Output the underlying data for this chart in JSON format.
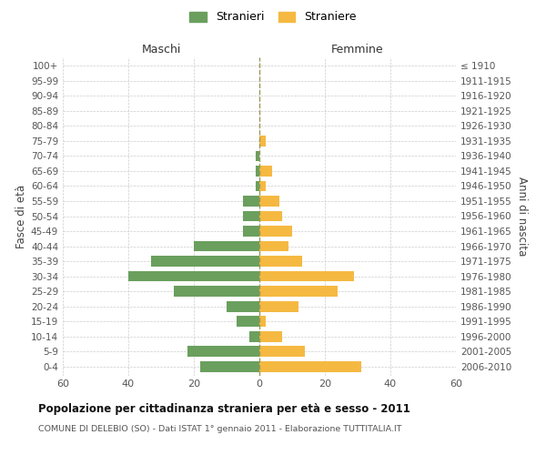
{
  "age_groups": [
    "0-4",
    "5-9",
    "10-14",
    "15-19",
    "20-24",
    "25-29",
    "30-34",
    "35-39",
    "40-44",
    "45-49",
    "50-54",
    "55-59",
    "60-64",
    "65-69",
    "70-74",
    "75-79",
    "80-84",
    "85-89",
    "90-94",
    "95-99",
    "100+"
  ],
  "birth_years": [
    "2006-2010",
    "2001-2005",
    "1996-2000",
    "1991-1995",
    "1986-1990",
    "1981-1985",
    "1976-1980",
    "1971-1975",
    "1966-1970",
    "1961-1965",
    "1956-1960",
    "1951-1955",
    "1946-1950",
    "1941-1945",
    "1936-1940",
    "1931-1935",
    "1926-1930",
    "1921-1925",
    "1916-1920",
    "1911-1915",
    "≤ 1910"
  ],
  "males": [
    18,
    22,
    3,
    7,
    10,
    26,
    40,
    33,
    20,
    5,
    5,
    5,
    1,
    1,
    1,
    0,
    0,
    0,
    0,
    0,
    0
  ],
  "females": [
    31,
    14,
    7,
    2,
    12,
    24,
    29,
    13,
    9,
    10,
    7,
    6,
    2,
    4,
    0,
    2,
    0,
    0,
    0,
    0,
    0
  ],
  "male_color": "#6a9f5e",
  "female_color": "#f5b942",
  "title": "Popolazione per cittadinanza straniera per età e sesso - 2011",
  "subtitle": "COMUNE DI DELEBIO (SO) - Dati ISTAT 1° gennaio 2011 - Elaborazione TUTTITALIA.IT",
  "ylabel_left": "Fasce di età",
  "ylabel_right": "Anni di nascita",
  "xlabel_left": "Maschi",
  "xlabel_right": "Femmine",
  "legend_male": "Stranieri",
  "legend_female": "Straniere",
  "xlim": 60,
  "background_color": "#ffffff",
  "grid_color": "#cccccc"
}
